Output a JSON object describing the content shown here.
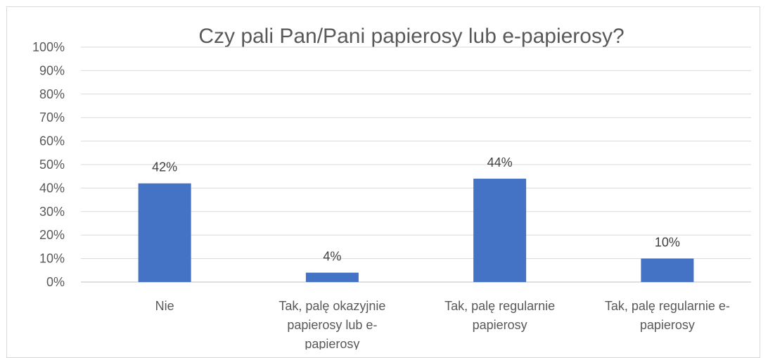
{
  "chart_data": {
    "type": "bar",
    "title": "Czy pali Pan/Pani papierosy lub e-papierosy?",
    "categories": [
      [
        "Nie"
      ],
      [
        "Tak, palę okazyjnie",
        "papierosy lub e-",
        "papierosy"
      ],
      [
        "Tak, palę regularnie",
        "papierosy"
      ],
      [
        "Tak, palę regularnie e-",
        "papierosy"
      ]
    ],
    "values": [
      42,
      4,
      44,
      10
    ],
    "data_labels": [
      "42%",
      "4%",
      "44%",
      "10%"
    ],
    "ylim": [
      0,
      100
    ],
    "yticks": [
      0,
      10,
      20,
      30,
      40,
      50,
      60,
      70,
      80,
      90,
      100
    ],
    "ytick_labels": [
      "0%",
      "10%",
      "20%",
      "30%",
      "40%",
      "50%",
      "60%",
      "70%",
      "80%",
      "90%",
      "100%"
    ],
    "bar_color": "#4472c4",
    "grid": true,
    "legend": "none"
  }
}
